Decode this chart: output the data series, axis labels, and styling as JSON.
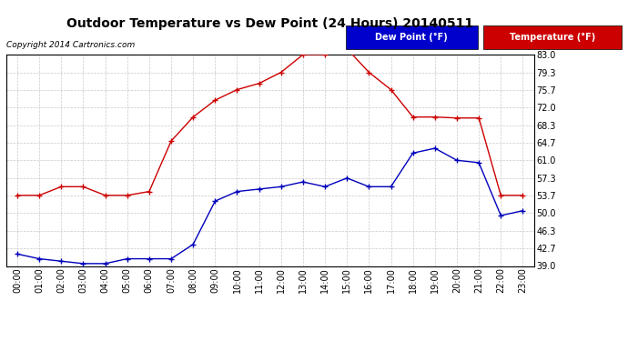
{
  "title": "Outdoor Temperature vs Dew Point (24 Hours) 20140511",
  "copyright": "Copyright 2014 Cartronics.com",
  "background_color": "#ffffff",
  "plot_background": "#ffffff",
  "grid_color": "#bbbbbb",
  "hours": [
    0,
    1,
    2,
    3,
    4,
    5,
    6,
    7,
    8,
    9,
    10,
    11,
    12,
    13,
    14,
    15,
    16,
    17,
    18,
    19,
    20,
    21,
    22,
    23
  ],
  "temperature": [
    53.7,
    53.7,
    55.5,
    55.5,
    53.7,
    53.7,
    54.5,
    65.0,
    70.0,
    73.5,
    75.7,
    77.0,
    79.3,
    83.0,
    83.0,
    84.2,
    79.3,
    75.7,
    70.0,
    70.0,
    69.8,
    69.8,
    53.7,
    53.7
  ],
  "dew_point": [
    41.5,
    40.5,
    40.0,
    39.5,
    39.5,
    40.5,
    40.5,
    40.5,
    43.5,
    52.5,
    54.5,
    55.0,
    55.5,
    56.5,
    55.5,
    57.3,
    55.5,
    55.5,
    62.5,
    63.5,
    61.0,
    60.5,
    49.5,
    50.5
  ],
  "temp_color": "#cc0000",
  "dew_color": "#0000bb",
  "ylim_min": 39.0,
  "ylim_max": 83.0,
  "yticks": [
    39.0,
    42.7,
    46.3,
    50.0,
    53.7,
    57.3,
    61.0,
    64.7,
    68.3,
    72.0,
    75.7,
    79.3,
    83.0
  ],
  "legend_dew_bg": "#0000cc",
  "legend_temp_bg": "#cc0000",
  "legend_dew_text": "Dew Point (°F)",
  "legend_temp_text": "Temperature (°F)"
}
